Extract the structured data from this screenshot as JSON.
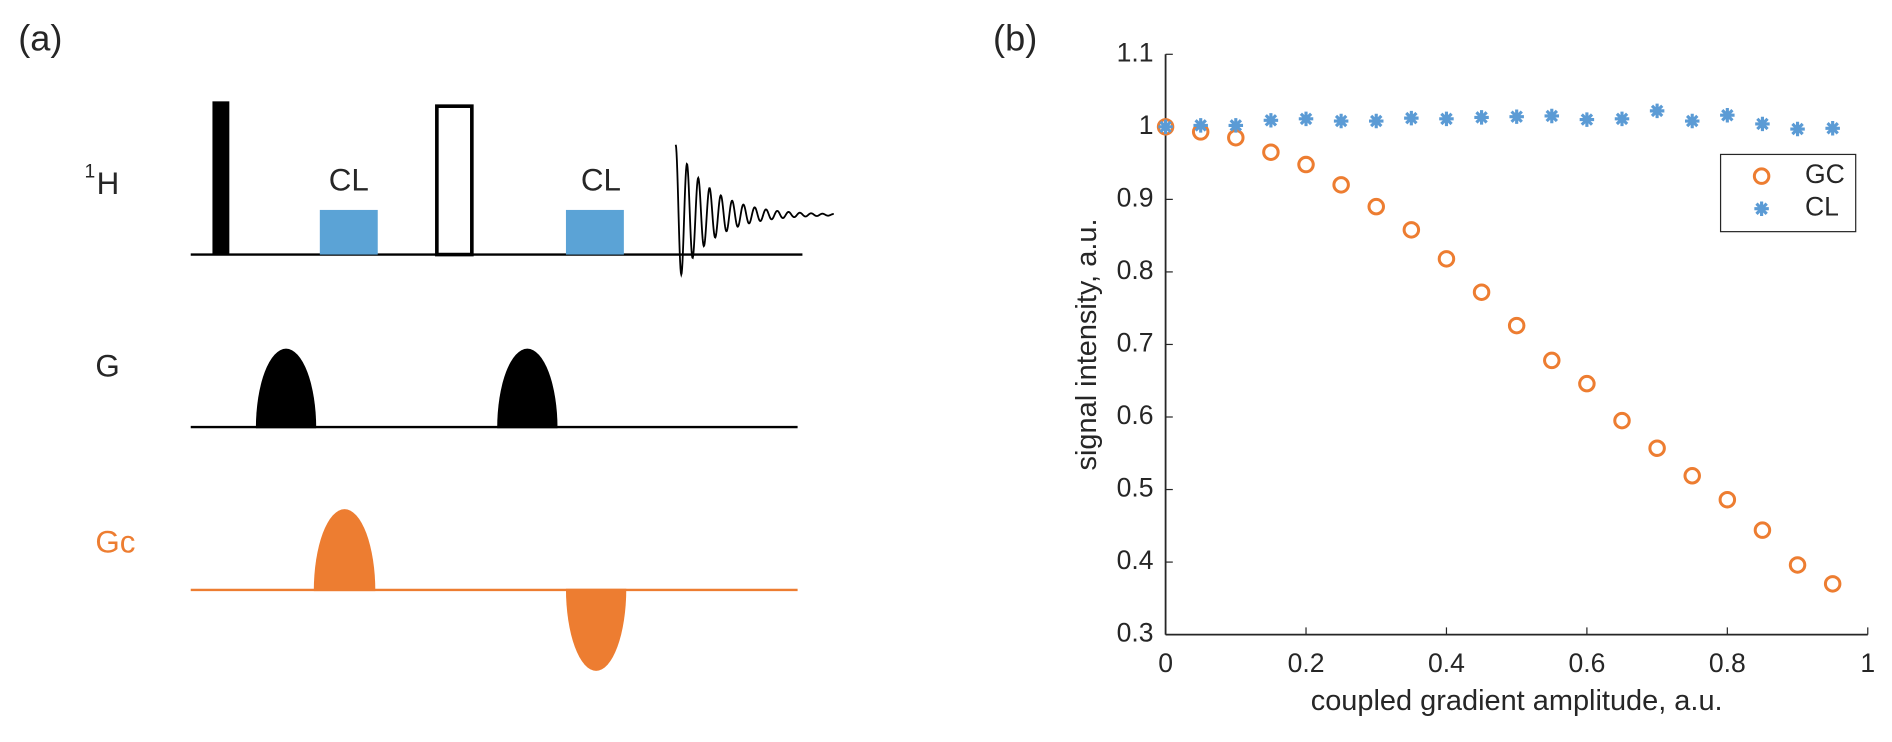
{
  "panel_a": {
    "label": "(a)",
    "h_sup": "1",
    "h_label": "H",
    "g_label": "G",
    "gc_label": "Gc",
    "cl_label_1": "CL",
    "cl_label_2": "CL"
  },
  "chart_data": {
    "type": "scatter",
    "panel_label": "(b)",
    "x_label": "coupled gradient amplitude, a.u.",
    "y_label": "signal intensity, a.u.",
    "x": [
      0,
      0.05,
      0.1,
      0.15,
      0.2,
      0.25,
      0.3,
      0.35,
      0.4,
      0.45,
      0.5,
      0.55,
      0.6,
      0.65,
      0.7,
      0.75,
      0.8,
      0.85,
      0.9,
      0.95
    ],
    "series": [
      {
        "name": "GC",
        "color": "#ed7d31",
        "marker": "circle",
        "values": [
          1,
          0.993,
          0.985,
          0.965,
          0.948,
          0.92,
          0.89,
          0.858,
          0.818,
          0.772,
          0.726,
          0.678,
          0.646,
          0.595,
          0.557,
          0.519,
          0.486,
          0.444,
          0.396,
          0.37
        ]
      },
      {
        "name": "CL",
        "color": "#5b9bd5",
        "marker": "asterisk",
        "values": [
          1,
          1.002,
          1.002,
          1.009,
          1.011,
          1.008,
          1.008,
          1.012,
          1.011,
          1.013,
          1.014,
          1.015,
          1.01,
          1.011,
          1.022,
          1.008,
          1.016,
          1.004,
          0.997,
          0.998
        ]
      }
    ],
    "xlim": [
      0,
      1
    ],
    "xticks": [
      0,
      0.2,
      0.4,
      0.6,
      0.8,
      1
    ],
    "ylim": [
      0.3,
      1.1
    ],
    "yticks": [
      0.3,
      0.4,
      0.5,
      0.6,
      0.7,
      0.8,
      0.9,
      1,
      1.1
    ],
    "legend": "northeast",
    "grid": false
  }
}
